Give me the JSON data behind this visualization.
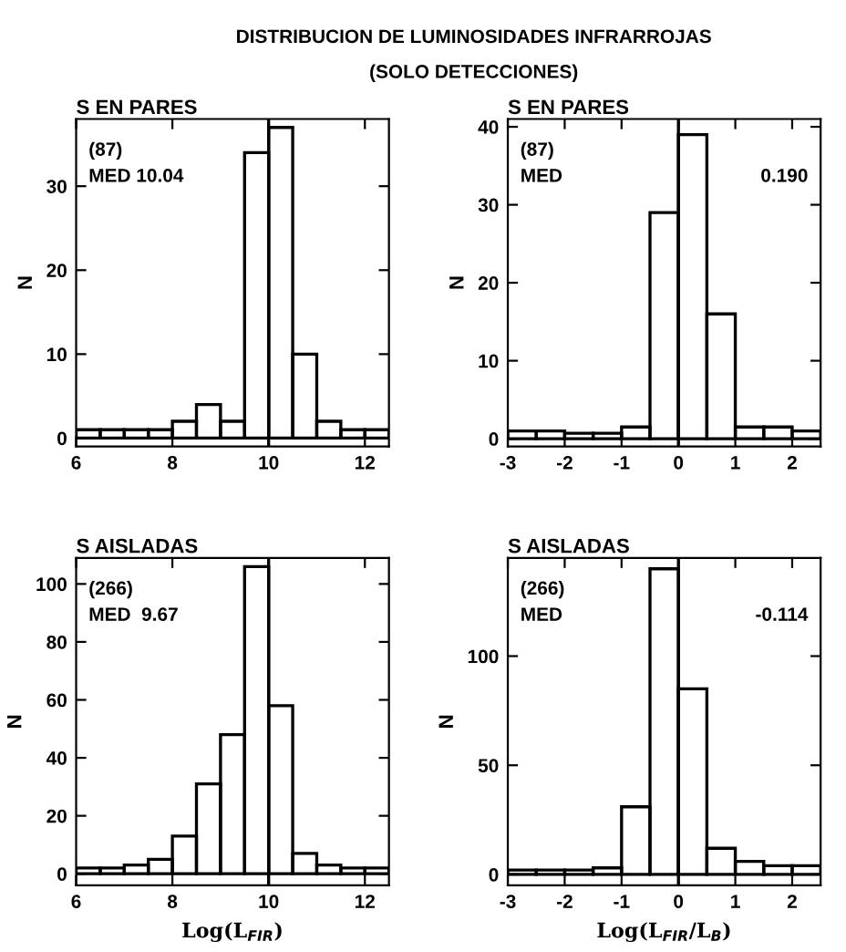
{
  "chart_data": [
    {
      "type": "histogram",
      "title": "S EN PARES",
      "ylabel": "N",
      "annotations": [
        "DISTRIBUCION DE LUMINOSIDADES INFRARROJAS",
        "(SOLO DETECCIONES)",
        "(87)",
        "MED 10.04"
      ],
      "bins": [
        6,
        6.5,
        7,
        7.5,
        8,
        8.5,
        9,
        9.5,
        10,
        10.5,
        11,
        11.5,
        12,
        12.5
      ],
      "values": [
        1,
        1,
        1,
        1,
        2,
        4,
        2,
        34,
        37,
        10,
        2,
        1,
        1
      ],
      "xlim": [
        6,
        12.5
      ],
      "xticks": [
        6,
        8,
        10,
        12
      ],
      "ylim": [
        -1,
        38
      ],
      "yticks": [
        0,
        10,
        20,
        30
      ],
      "ref_lines": [
        {
          "axis": "x",
          "value": 10
        }
      ],
      "grid": false,
      "legend": false
    },
    {
      "type": "histogram",
      "title": "S EN PARES",
      "ylabel": "N",
      "annotations": [
        "(87)",
        "MED",
        "0.190"
      ],
      "bins": [
        -3,
        -2.5,
        -2,
        -1.5,
        -1,
        -0.5,
        0,
        0.5,
        1,
        1.5,
        2,
        2.5
      ],
      "values": [
        1,
        1,
        0.7,
        0.7,
        1.5,
        29,
        39,
        16,
        1.5,
        1.5,
        1
      ],
      "xlim": [
        -3,
        2.5
      ],
      "xticks": [
        -3,
        -2,
        -1,
        0,
        1,
        2
      ],
      "ylim": [
        -1,
        41
      ],
      "yticks": [
        0,
        10,
        20,
        30,
        40
      ],
      "ref_lines": [
        {
          "axis": "x",
          "value": 0
        }
      ],
      "grid": false,
      "legend": false
    },
    {
      "type": "histogram",
      "title": "S AISLADAS",
      "ylabel": "N",
      "xlabel": "Log(L$_{FIR}$)",
      "annotations": [
        "(266)",
        "MED  9.67"
      ],
      "bins": [
        6,
        6.5,
        7,
        7.5,
        8,
        8.5,
        9,
        9.5,
        10,
        10.5,
        11,
        11.5,
        12,
        12.5
      ],
      "values": [
        2,
        2,
        3,
        5,
        13,
        31,
        48,
        106,
        58,
        7,
        3,
        2,
        2
      ],
      "xlim": [
        6,
        12.5
      ],
      "xticks": [
        6,
        8,
        10,
        12
      ],
      "ylim": [
        -4,
        109
      ],
      "yticks": [
        0,
        20,
        40,
        60,
        80,
        100
      ],
      "ref_lines": [
        {
          "axis": "x",
          "value": 10
        }
      ],
      "grid": false,
      "legend": false
    },
    {
      "type": "histogram",
      "title": "S AISLADAS",
      "ylabel": "N",
      "xlabel": "Log(L$_{FIR}$/L$_{B}$)",
      "annotations": [
        "(266)",
        "MED",
        "-0.114"
      ],
      "bins": [
        -3,
        -2.5,
        -2,
        -1.5,
        -1,
        -0.5,
        0,
        0.5,
        1,
        1.5,
        2,
        2.5
      ],
      "values": [
        2,
        2,
        2,
        3,
        31,
        140,
        85,
        12,
        6,
        4,
        4
      ],
      "xlim": [
        -3,
        2.5
      ],
      "xticks": [
        -3,
        -2,
        -1,
        0,
        1,
        2
      ],
      "ylim": [
        -5,
        145
      ],
      "yticks": [
        0,
        50,
        100
      ],
      "ref_lines": [
        {
          "axis": "x",
          "value": 0
        }
      ],
      "grid": false,
      "legend": false
    }
  ]
}
